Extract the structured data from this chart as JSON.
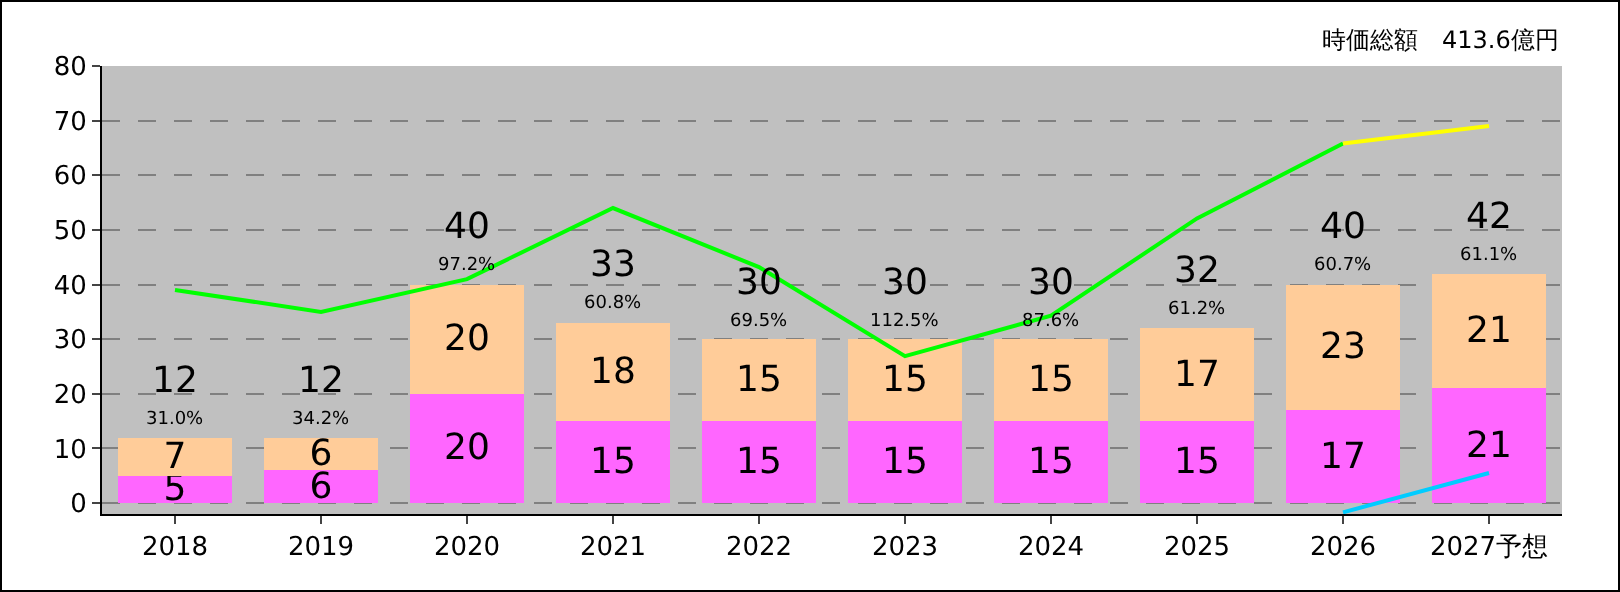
{
  "chart_data": {
    "type": "bar",
    "stacked": true,
    "categories": [
      "2018",
      "2019",
      "2020",
      "2021",
      "2022",
      "2023",
      "2024",
      "2025",
      "2026",
      "2027予想"
    ],
    "series": [
      {
        "color": "#ff66ff",
        "values": [
          5,
          6,
          20,
          15,
          15,
          15,
          15,
          15,
          17,
          21
        ],
        "value_labels": [
          "5",
          "6",
          "20",
          "15",
          "15",
          "15",
          "15",
          "15",
          "17",
          "21"
        ]
      },
      {
        "color": "#ffcc99",
        "values": [
          7,
          6,
          20,
          18,
          15,
          15,
          15,
          17,
          23,
          21
        ],
        "value_labels": [
          "7",
          "6",
          "20",
          "18",
          "15",
          "15",
          "15",
          "17",
          "23",
          "21"
        ]
      },
      {
        "type": "line",
        "color": "#00ff00",
        "values": [
          39,
          35,
          41,
          54,
          43.2,
          26.9,
          34.3,
          52.1,
          65.8,
          null
        ]
      },
      {
        "type": "line",
        "color": "#ffff00",
        "values": [
          null,
          null,
          null,
          null,
          null,
          null,
          null,
          null,
          65.8,
          69
        ]
      },
      {
        "type": "line",
        "color": "#00ccff",
        "values": [
          null,
          null,
          null,
          null,
          null,
          null,
          null,
          null,
          -1.7,
          5.5
        ]
      }
    ],
    "totals": [
      "12",
      "12",
      "40",
      "33",
      "30",
      "30",
      "30",
      "32",
      "40",
      "42"
    ],
    "annotations": [
      "時価総額　413.6億円",
      {
        "text": "31.0%",
        "x": "2018",
        "y": 12
      },
      {
        "text": "34.2%",
        "x": "2019",
        "y": 12
      },
      {
        "text": "97.2%",
        "x": "2020",
        "y": 40
      },
      {
        "text": "60.8%",
        "x": "2021",
        "y": 33
      },
      {
        "text": "69.5%",
        "x": "2022",
        "y": 30
      },
      {
        "text": "112.5%",
        "x": "2023",
        "y": 30
      },
      {
        "text": "87.6%",
        "x": "2024",
        "y": 30
      },
      {
        "text": "61.2%",
        "x": "2025",
        "y": 32
      },
      {
        "text": "60.7%",
        "x": "2026",
        "y": 40
      },
      {
        "text": "61.1%",
        "x": "2027予想",
        "y": 42
      }
    ],
    "ylim": [
      -2,
      80
    ],
    "yticks": [
      0,
      10,
      20,
      30,
      40,
      50,
      60,
      70,
      80
    ],
    "grid": "y",
    "legend": false
  }
}
